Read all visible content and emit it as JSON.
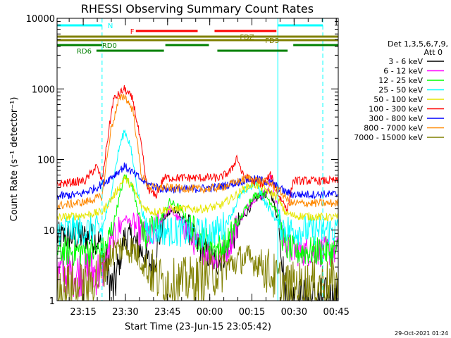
{
  "chart_data": {
    "type": "line",
    "title": "RHESSI Observing Summary Count Rates",
    "xlabel": "Start Time (23-Jun-15 23:05:42)",
    "ylabel": "Count Rate (s⁻¹ detector⁻¹)",
    "yscale": "log",
    "ylim": [
      1,
      10000
    ],
    "xlim_minutes": [
      0,
      100
    ],
    "x_ticks": [
      {
        "label": "23:15",
        "min": 9.3
      },
      {
        "label": "23:30",
        "min": 24.3
      },
      {
        "label": "23:45",
        "min": 39.3
      },
      {
        "label": "00:00",
        "min": 54.3
      },
      {
        "label": "00:15",
        "min": 69.3
      },
      {
        "label": "00:30",
        "min": 84.3
      },
      {
        "label": "00:45",
        "min": 99.3
      }
    ],
    "y_ticks": [
      {
        "label": "1",
        "value": 1
      },
      {
        "label": "10",
        "value": 10
      },
      {
        "label": "100",
        "value": 100
      },
      {
        "label": "1000",
        "value": 1000
      },
      {
        "label": "10000",
        "value": 10000
      }
    ],
    "legend_header": "Det 1,3,5,6,7,9,",
    "legend_att": "Att 0",
    "legend_position": "right",
    "series": [
      {
        "name": "3 - 6 keV",
        "color": "#000000",
        "base": [
          8,
          5,
          22,
          5,
          35,
          1
        ],
        "points": [
          [
            0,
            8
          ],
          [
            12,
            8
          ],
          [
            15,
            7
          ],
          [
            20,
            1.3
          ],
          [
            24,
            8
          ],
          [
            27,
            7.5
          ],
          [
            34,
            3
          ],
          [
            38,
            15
          ],
          [
            42,
            20
          ],
          [
            46,
            12
          ],
          [
            50,
            6
          ],
          [
            57,
            3.5
          ],
          [
            60,
            5
          ],
          [
            66,
            15
          ],
          [
            71,
            28
          ],
          [
            76,
            35
          ],
          [
            79,
            12
          ],
          [
            81,
            1.3
          ],
          [
            83,
            1
          ],
          [
            90,
            1
          ],
          [
            100,
            1
          ]
        ]
      },
      {
        "name": "6 - 12 keV",
        "color": "#ff00ff",
        "base": [
          2.5,
          15,
          10,
          40,
          6
        ],
        "points": [
          [
            0,
            2.5
          ],
          [
            10,
            2.5
          ],
          [
            16,
            2.6
          ],
          [
            19,
            6
          ],
          [
            24,
            15
          ],
          [
            27,
            12
          ],
          [
            33,
            7
          ],
          [
            36,
            12
          ],
          [
            40,
            20
          ],
          [
            45,
            12
          ],
          [
            50,
            6
          ],
          [
            57,
            4
          ],
          [
            60,
            5
          ],
          [
            65,
            14
          ],
          [
            70,
            28
          ],
          [
            75,
            35
          ],
          [
            76,
            60
          ],
          [
            78,
            25
          ],
          [
            81,
            7
          ],
          [
            84,
            5
          ],
          [
            100,
            5
          ]
        ]
      },
      {
        "name": "12 - 25 keV",
        "color": "#00ff00",
        "base": [
          5,
          30,
          6,
          8
        ],
        "points": [
          [
            0,
            5
          ],
          [
            15,
            5
          ],
          [
            17,
            5
          ],
          [
            20,
            12
          ],
          [
            24,
            60
          ],
          [
            27,
            40
          ],
          [
            31,
            8
          ],
          [
            36,
            12
          ],
          [
            40,
            25
          ],
          [
            44,
            20
          ],
          [
            50,
            8
          ],
          [
            57,
            5.5
          ],
          [
            60,
            6
          ],
          [
            64,
            12
          ],
          [
            69,
            28
          ],
          [
            73,
            35
          ],
          [
            78,
            20
          ],
          [
            81,
            6
          ],
          [
            84,
            5
          ],
          [
            100,
            5
          ]
        ]
      },
      {
        "name": "25 - 50 keV",
        "color": "#00ffff",
        "base": [
          10,
          260,
          9,
          10
        ],
        "points": [
          [
            0,
            10
          ],
          [
            16,
            10
          ],
          [
            19,
            30
          ],
          [
            22,
            140
          ],
          [
            24,
            260
          ],
          [
            26,
            160
          ],
          [
            29,
            30
          ],
          [
            32,
            10
          ],
          [
            35,
            10
          ],
          [
            52,
            9
          ],
          [
            58,
            10
          ],
          [
            61,
            14
          ],
          [
            65,
            30
          ],
          [
            68,
            40
          ],
          [
            71,
            45
          ],
          [
            74,
            25
          ],
          [
            79,
            12
          ],
          [
            83,
            10
          ],
          [
            100,
            10
          ]
        ]
      },
      {
        "name": "50 - 100 keV",
        "color": "#e6e600",
        "base": [
          15,
          60,
          20,
          15
        ],
        "points": [
          [
            0,
            15
          ],
          [
            8,
            16
          ],
          [
            16,
            18
          ],
          [
            20,
            30
          ],
          [
            24,
            55
          ],
          [
            27,
            40
          ],
          [
            30,
            22
          ],
          [
            34,
            18
          ],
          [
            40,
            20
          ],
          [
            52,
            20
          ],
          [
            58,
            22
          ],
          [
            63,
            30
          ],
          [
            67,
            40
          ],
          [
            70,
            45
          ],
          [
            73,
            40
          ],
          [
            78,
            30
          ],
          [
            81,
            18
          ],
          [
            84,
            16
          ],
          [
            100,
            15
          ]
        ]
      },
      {
        "name": "100 - 300 keV",
        "color": "#ff0000",
        "base": [
          45,
          1000,
          55,
          50
        ],
        "points": [
          [
            0,
            45
          ],
          [
            10,
            50
          ],
          [
            14,
            80
          ],
          [
            16,
            50
          ],
          [
            18,
            200
          ],
          [
            20,
            700
          ],
          [
            24,
            1000
          ],
          [
            27,
            700
          ],
          [
            30,
            150
          ],
          [
            32,
            40
          ],
          [
            35,
            30
          ],
          [
            38,
            55
          ],
          [
            58,
            55
          ],
          [
            62,
            70
          ],
          [
            64,
            110
          ],
          [
            66,
            60
          ],
          [
            69,
            50
          ],
          [
            73,
            45
          ],
          [
            76,
            60
          ],
          [
            79,
            30
          ],
          [
            82,
            20
          ],
          [
            84,
            50
          ],
          [
            100,
            50
          ]
        ]
      },
      {
        "name": "300 - 800 keV",
        "color": "#0000ff",
        "base": [
          30,
          80,
          40,
          32
        ],
        "points": [
          [
            0,
            30
          ],
          [
            8,
            32
          ],
          [
            14,
            40
          ],
          [
            19,
            55
          ],
          [
            24,
            80
          ],
          [
            28,
            60
          ],
          [
            32,
            45
          ],
          [
            38,
            38
          ],
          [
            48,
            38
          ],
          [
            56,
            40
          ],
          [
            62,
            45
          ],
          [
            68,
            52
          ],
          [
            72,
            52
          ],
          [
            77,
            45
          ],
          [
            81,
            35
          ],
          [
            84,
            32
          ],
          [
            100,
            32
          ]
        ]
      },
      {
        "name": "800 - 7000 keV",
        "color": "#ff8800",
        "base": [
          22,
          800,
          40,
          24
        ],
        "points": [
          [
            0,
            22
          ],
          [
            10,
            25
          ],
          [
            16,
            30
          ],
          [
            19,
            250
          ],
          [
            22,
            700
          ],
          [
            24,
            800
          ],
          [
            27,
            500
          ],
          [
            30,
            60
          ],
          [
            33,
            40
          ],
          [
            38,
            40
          ],
          [
            52,
            38
          ],
          [
            58,
            40
          ],
          [
            64,
            48
          ],
          [
            68,
            55
          ],
          [
            72,
            50
          ],
          [
            76,
            45
          ],
          [
            80,
            33
          ],
          [
            83,
            24
          ],
          [
            100,
            24
          ]
        ]
      },
      {
        "name": "7000 - 15000 keV",
        "color": "#808000",
        "base": [
          1.5,
          6,
          3.5,
          1.8
        ],
        "points": [
          [
            0,
            1.5
          ],
          [
            10,
            1.6
          ],
          [
            16,
            2.5
          ],
          [
            20,
            5
          ],
          [
            24,
            6
          ],
          [
            28,
            5
          ],
          [
            32,
            3
          ],
          [
            36,
            2
          ],
          [
            42,
            1.8
          ],
          [
            50,
            2
          ],
          [
            56,
            2.5
          ],
          [
            60,
            3
          ],
          [
            66,
            4
          ],
          [
            72,
            3.5
          ],
          [
            78,
            2
          ],
          [
            82,
            1.6
          ],
          [
            100,
            1.8
          ]
        ]
      }
    ],
    "flags": [
      {
        "label": "N",
        "color": "#00ffff",
        "y": 10,
        "segments": [
          [
            0,
            16
          ],
          [
            78.5,
            94.5
          ]
        ],
        "label_at": 18
      },
      {
        "label": "F",
        "color": "#ff0000",
        "y": 18,
        "segments": [
          [
            28,
            50
          ],
          [
            56,
            78
          ]
        ],
        "label_at": 26
      },
      {
        "label": "FDZ",
        "color": "#808000",
        "y": 26,
        "segments": [
          [
            0,
            100
          ]
        ],
        "label_at": 65
      },
      {
        "label": "FD3",
        "color": "#808000",
        "y": 31,
        "segments": [
          [
            0,
            100
          ]
        ],
        "label_at": 74
      },
      {
        "label": "RD0",
        "color": "#008000",
        "y": 38,
        "segments": [
          [
            0,
            16
          ],
          [
            38.5,
            54
          ],
          [
            84,
            100
          ]
        ],
        "label_at": 16
      },
      {
        "label": "RD6",
        "color": "#008000",
        "y": 46,
        "segments": [
          [
            14,
            38
          ],
          [
            57,
            82
          ]
        ],
        "label_at": 7
      }
    ],
    "vlines": [
      {
        "min": 16,
        "color": "#00ffff",
        "style": "dashed"
      },
      {
        "min": 78.5,
        "color": "#00ffff",
        "style": "solid"
      },
      {
        "min": 94.5,
        "color": "#00ffff",
        "style": "dashed"
      }
    ],
    "footer_date": "29-Oct-2021 01:24"
  }
}
